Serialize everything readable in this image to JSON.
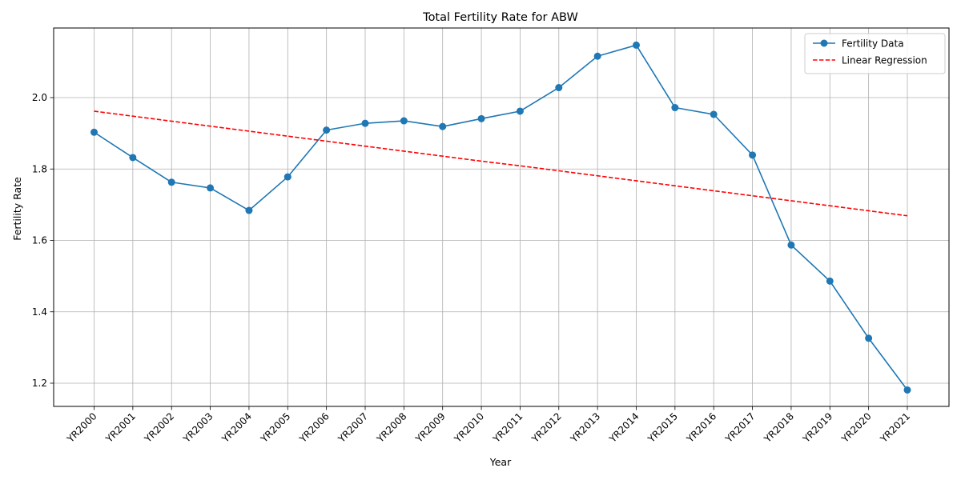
{
  "chart_data": {
    "type": "line",
    "title": "Total Fertility Rate for ABW",
    "xlabel": "Year",
    "ylabel": "Fertility Rate",
    "categories": [
      "YR2000",
      "YR2001",
      "YR2002",
      "YR2003",
      "YR2004",
      "YR2005",
      "YR2006",
      "YR2007",
      "YR2008",
      "YR2009",
      "YR2010",
      "YR2011",
      "YR2012",
      "YR2013",
      "YR2014",
      "YR2015",
      "YR2016",
      "YR2017",
      "YR2018",
      "YR2019",
      "YR2020",
      "YR2021"
    ],
    "ylim": [
      1.135,
      2.195
    ],
    "yticks": [
      1.2,
      1.4,
      1.6,
      1.8,
      2.0
    ],
    "ytick_labels": [
      "1.2",
      "1.4",
      "1.6",
      "1.8",
      "2.0"
    ],
    "grid": true,
    "legend_position": "top-right",
    "series": [
      {
        "name": "Fertility Data",
        "style": "solid-line-with-circle-markers",
        "color": "#1f77b4",
        "values": [
          1.903,
          1.832,
          1.763,
          1.747,
          1.684,
          1.778,
          1.909,
          1.928,
          1.935,
          1.919,
          1.941,
          1.962,
          2.028,
          2.116,
          2.147,
          1.972,
          1.953,
          1.839,
          1.587,
          1.486,
          1.326,
          1.181
        ]
      },
      {
        "name": "Linear Regression",
        "style": "dashed-line",
        "color": "#ff0000",
        "values": [
          1.962,
          1.948,
          1.934,
          1.92,
          1.906,
          1.892,
          1.878,
          1.864,
          1.85,
          1.836,
          1.822,
          1.809,
          1.795,
          1.781,
          1.767,
          1.753,
          1.739,
          1.725,
          1.711,
          1.697,
          1.683,
          1.669
        ]
      }
    ]
  }
}
